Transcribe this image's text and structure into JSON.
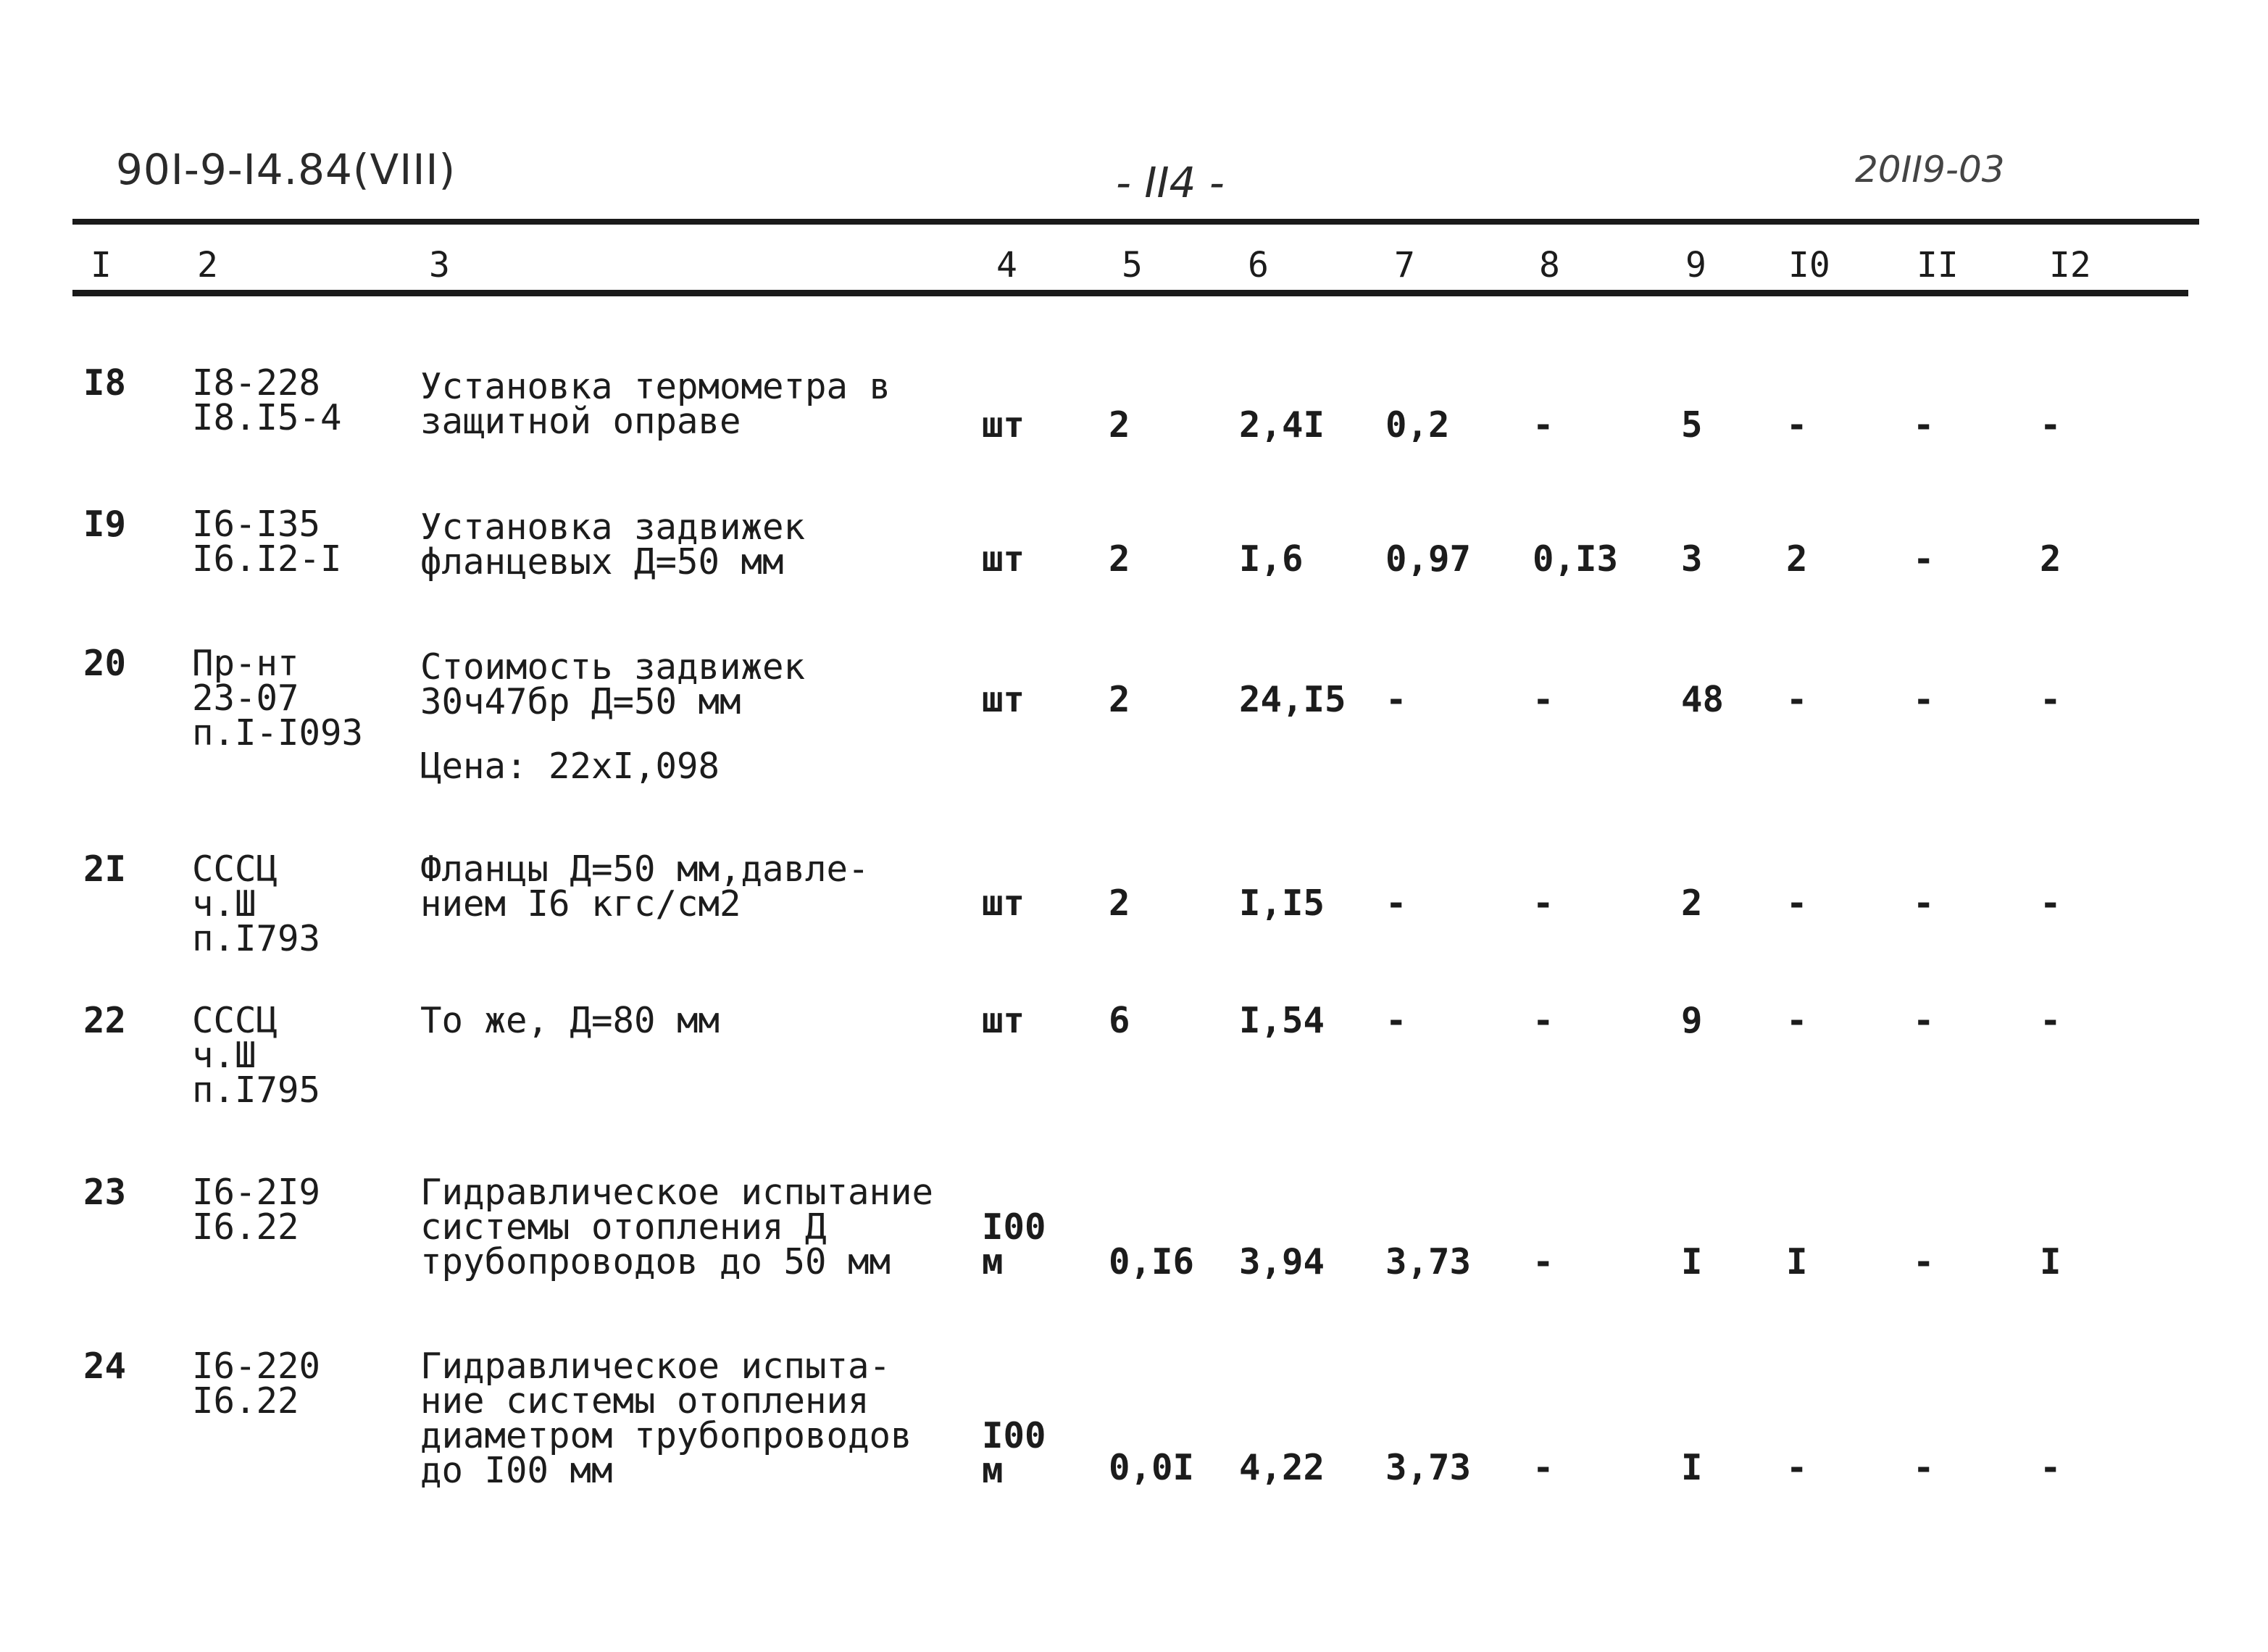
{
  "header": {
    "doc_code": "90I-9-I4.84(VIII)",
    "page": "- II4 -",
    "stamp": "20II9-03"
  },
  "columns": [
    "I",
    "2",
    "3",
    "4",
    "5",
    "6",
    "7",
    "8",
    "9",
    "I0",
    "II",
    "I2"
  ],
  "rows": [
    {
      "no": "I8",
      "code": "I8-228\nI8.I5-4",
      "desc": "Установка термометра в\nзащитной оправе",
      "unit": "шт",
      "c5": "2",
      "c6": "2,4I",
      "c7": "0,2",
      "c8": "-",
      "c9": "5",
      "c10": "-",
      "c11": "-",
      "c12": "-"
    },
    {
      "no": "I9",
      "code": "I6-I35\nI6.I2-I",
      "desc": "Установка задвижек\nфланцевых Д=50 мм",
      "unit": "шт",
      "c5": "2",
      "c6": "I,6",
      "c7": "0,97",
      "c8": "0,I3",
      "c9": "3",
      "c10": "2",
      "c11": "-",
      "c12": "2"
    },
    {
      "no": "20",
      "code": "Пр-нт\n23-07\nп.I-I093",
      "desc": "Стоимость задвижек\n30ч47бр Д=50 мм",
      "note": "Цена: 22xI,098",
      "unit": "шт",
      "c5": "2",
      "c6": "24,I5",
      "c7": "-",
      "c8": "-",
      "c9": "48",
      "c10": "-",
      "c11": "-",
      "c12": "-"
    },
    {
      "no": "2I",
      "code": "СССЦ\nч.Ш\nп.I793",
      "desc": "Фланцы Д=50 мм,давле-\nнием I6 кгс/см2",
      "unit": "шт",
      "c5": "2",
      "c6": "I,I5",
      "c7": "-",
      "c8": "-",
      "c9": "2",
      "c10": "-",
      "c11": "-",
      "c12": "-"
    },
    {
      "no": "22",
      "code": "СССЦ\nч.Ш\nп.I795",
      "desc": "То же, Д=80 мм",
      "unit": "шт",
      "c5": "6",
      "c6": "I,54",
      "c7": "-",
      "c8": "-",
      "c9": "9",
      "c10": "-",
      "c11": "-",
      "c12": "-"
    },
    {
      "no": "23",
      "code": "I6-2I9\nI6.22",
      "desc": "Гидравлическое испытание\nсистемы отопления Д\nтрубопроводов до 50 мм",
      "unit": "I00\nм",
      "c5": "0,I6",
      "c6": "3,94",
      "c7": "3,73",
      "c8": "-",
      "c9": "I",
      "c10": "I",
      "c11": "-",
      "c12": "I"
    },
    {
      "no": "24",
      "code": "I6-220\nI6.22",
      "desc": "Гидравлическое испыта-\nние системы отопления\nдиаметром трубопроводов\nдо I00 мм",
      "unit": "I00\nм",
      "c5": "0,0I",
      "c6": "4,22",
      "c7": "3,73",
      "c8": "-",
      "c9": "I",
      "c10": "-",
      "c11": "-",
      "c12": "-"
    }
  ]
}
